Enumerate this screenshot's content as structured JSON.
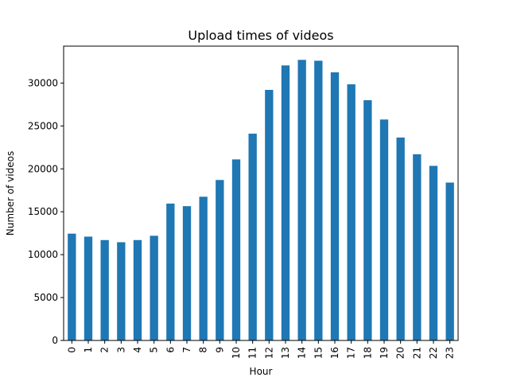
{
  "chart_data": {
    "type": "bar",
    "title": "Upload times of videos",
    "xlabel": "Hour",
    "ylabel": "Number of videos",
    "categories": [
      "0",
      "1",
      "2",
      "3",
      "4",
      "5",
      "6",
      "7",
      "8",
      "9",
      "10",
      "11",
      "12",
      "13",
      "14",
      "15",
      "16",
      "17",
      "18",
      "19",
      "20",
      "21",
      "22",
      "23"
    ],
    "values": [
      12450,
      12100,
      11700,
      11450,
      11700,
      12200,
      15950,
      15650,
      16750,
      18700,
      21100,
      24100,
      29200,
      32050,
      32700,
      32600,
      31250,
      29850,
      28000,
      25750,
      23650,
      21700,
      20350,
      18400
    ],
    "ylim": [
      0,
      34300
    ],
    "yticks": [
      0,
      5000,
      10000,
      15000,
      20000,
      25000,
      30000
    ],
    "grid": false,
    "bar_color": "#1f77b4"
  }
}
